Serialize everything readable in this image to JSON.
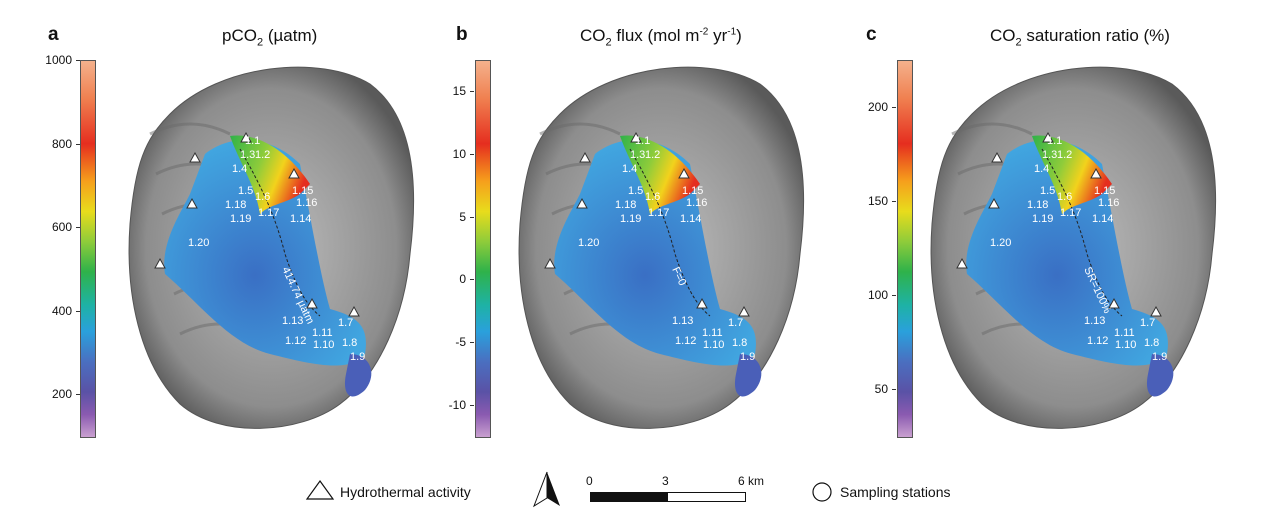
{
  "panels": [
    {
      "letter": "a",
      "title_main": "pCO",
      "title_sub": "2",
      "title_rest": " (µatm)",
      "ticks": [
        "1000",
        "800",
        "600",
        "400",
        "200"
      ],
      "tick_vals": [
        1000,
        800,
        600,
        400,
        200
      ],
      "cbar_min": 100,
      "cbar_max": 1000,
      "contour_label": "414.74 µatm"
    },
    {
      "letter": "b",
      "title_main": "CO",
      "title_sub": "2",
      "title_rest": " flux (mol m",
      "title_sup1": "-2",
      "title_rest2": " yr",
      "title_sup2": "-1",
      "title_rest3": ")",
      "ticks": [
        "15",
        "10",
        "5",
        "0",
        "-5",
        "-10"
      ],
      "tick_vals": [
        15,
        10,
        5,
        0,
        -5,
        -10
      ],
      "cbar_min": -12.5,
      "cbar_max": 17.5,
      "contour_label": "F=0"
    },
    {
      "letter": "c",
      "title_main": "CO",
      "title_sub": "2",
      "title_rest": " saturation ratio (%)",
      "ticks": [
        "200",
        "150",
        "100",
        "50"
      ],
      "tick_vals": [
        200,
        150,
        100,
        50
      ],
      "cbar_min": 25,
      "cbar_max": 225,
      "contour_label": "SR=100%"
    }
  ],
  "stations": [
    "1.1",
    "1.3",
    "1.2",
    "1.4",
    "1.5",
    "1.6",
    "1.15",
    "1.16",
    "1.18",
    "1.19",
    "1.17",
    "1.14",
    "1.20",
    "1.13",
    "1.11",
    "1.7",
    "1.12",
    "1.10",
    "1.8",
    "1.9"
  ],
  "legend": {
    "hydro_label": "Hydrothermal activity",
    "sampling_label": "Sampling stations",
    "scale_ticks": [
      "0",
      "3",
      "6 km"
    ]
  }
}
